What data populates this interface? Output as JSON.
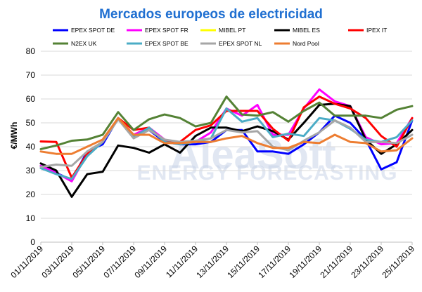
{
  "chart_data": {
    "type": "line",
    "title": "Mercados europeos de electricidad",
    "title_color": "#1f6fd1",
    "ylabel": "€/MWh",
    "xlabel": "",
    "ylim": [
      0,
      80
    ],
    "yticks": [
      0,
      10,
      20,
      30,
      40,
      50,
      60,
      70,
      80
    ],
    "grid": true,
    "legend_position": "top",
    "watermark": [
      "AleaSoft",
      "ENERGY FORECASTING"
    ],
    "x": [
      "01/11/2019",
      "02/11/2019",
      "03/11/2019",
      "04/11/2019",
      "05/11/2019",
      "06/11/2019",
      "07/11/2019",
      "08/11/2019",
      "09/11/2019",
      "10/11/2019",
      "11/11/2019",
      "12/11/2019",
      "13/11/2019",
      "14/11/2019",
      "15/11/2019",
      "16/11/2019",
      "17/11/2019",
      "18/11/2019",
      "19/11/2019",
      "20/11/2019",
      "21/11/2019",
      "22/11/2019",
      "23/11/2019",
      "24/11/2019",
      "25/11/2019"
    ],
    "xtick_labels": [
      "01/11/2019",
      "03/11/2019",
      "05/11/2019",
      "07/11/2019",
      "09/11/2019",
      "11/11/2019",
      "13/11/2019",
      "15/11/2019",
      "17/11/2019",
      "19/11/2019",
      "21/11/2019",
      "23/11/2019",
      "25/11/2019"
    ],
    "series": [
      {
        "name": "EPEX SPOT DE",
        "color": "#0000ff",
        "values": [
          32,
          29,
          26,
          38,
          41,
          52,
          44,
          47,
          42,
          41,
          41,
          42,
          47,
          47,
          38,
          38,
          37,
          41,
          46,
          53,
          50,
          43,
          30.5,
          33.5,
          51
        ]
      },
      {
        "name": "EPEX SPOT FR",
        "color": "#ff00ff",
        "values": [
          32,
          29,
          25.5,
          37,
          42,
          52,
          45,
          48,
          43,
          41,
          42,
          46,
          56,
          53,
          57.5,
          45,
          45,
          56,
          64,
          59,
          57,
          44,
          41,
          41.5,
          52
        ]
      },
      {
        "name": "MIBEL PT",
        "color": "#ffff00",
        "values": [
          null,
          null,
          null,
          null,
          null,
          null,
          null,
          null,
          null,
          null,
          null,
          null,
          null,
          null,
          null,
          null,
          null,
          null,
          null,
          null,
          null,
          null,
          null,
          null,
          null
        ]
      },
      {
        "name": "MIBEL ES",
        "color": "#000000",
        "values": [
          33,
          30,
          19,
          28.5,
          29.5,
          40.5,
          39.5,
          37.5,
          41,
          37.5,
          44.5,
          48,
          48,
          46.5,
          48.5,
          46.5,
          43,
          50,
          57.5,
          58,
          57,
          43,
          37,
          41,
          47
        ]
      },
      {
        "name": "IPEX IT",
        "color": "#ff0000",
        "values": [
          42.2,
          42,
          27,
          37,
          42,
          52,
          47,
          48,
          42,
          42,
          47,
          49,
          55,
          55,
          55,
          47.5,
          42.5,
          56.5,
          61,
          58,
          56,
          52,
          44.5,
          40,
          52
        ]
      },
      {
        "name": "N2EX UK",
        "color": "#548235",
        "values": [
          39,
          40.5,
          42.5,
          43,
          45,
          54.5,
          47,
          51.5,
          53.5,
          52,
          48.5,
          50,
          61,
          53.5,
          53,
          54.5,
          50.5,
          55,
          58.5,
          53,
          53,
          53,
          52,
          55.5,
          57
        ]
      },
      {
        "name": "EPEX SPOT BE",
        "color": "#4bacc6",
        "values": [
          31,
          28.5,
          26.5,
          36,
          42,
          51.5,
          44,
          48,
          42,
          41,
          42,
          43.5,
          56,
          50.5,
          52,
          44,
          45.5,
          44.5,
          52,
          51,
          47.5,
          43,
          42,
          44,
          51
        ]
      },
      {
        "name": "EPEX SPOT NL",
        "color": "#a6a6a6",
        "values": [
          31.5,
          32.5,
          32,
          38,
          42,
          51.5,
          43.5,
          47,
          43,
          42,
          42.5,
          43.5,
          47,
          46,
          46.5,
          40,
          38.5,
          42.5,
          46,
          51,
          48,
          42,
          42,
          41.5,
          45
        ]
      },
      {
        "name": "Nord Pool",
        "color": "#ed7d31",
        "values": [
          38,
          37,
          37,
          40,
          43,
          52,
          45,
          45,
          41.5,
          41.5,
          42,
          42,
          43.5,
          44.5,
          41.5,
          39.5,
          39.5,
          42,
          41.5,
          45,
          42,
          41.5,
          38,
          38.5,
          43.5
        ]
      }
    ]
  }
}
